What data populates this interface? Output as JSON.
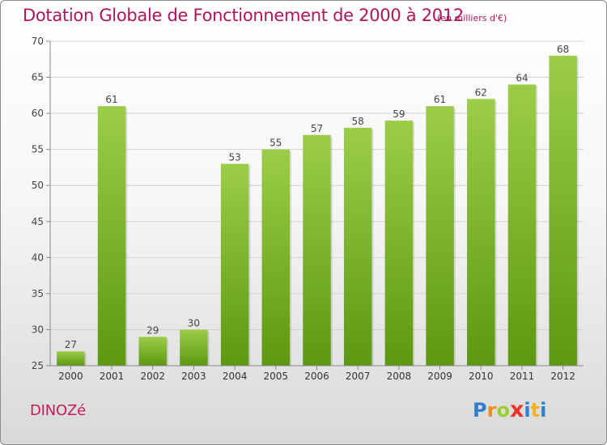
{
  "header": {
    "title": "Dotation Globale de Fonctionnement de 2000 à 2012",
    "subtitle": "(en milliers d'€)"
  },
  "footer": {
    "commune": "DINOZé",
    "logo_letters": [
      "P",
      "r",
      "o",
      "x",
      "i",
      "t",
      "i"
    ]
  },
  "colors": {
    "title": "#b0145a",
    "bar_top": "#9ccd48",
    "bar_bottom": "#5c9811",
    "logo": [
      "#2e7fd0",
      "#f28c1e",
      "#9acd32",
      "#e8352a",
      "#2e7fd0",
      "#f2b21e",
      "#2e7fd0"
    ]
  },
  "chart_data": {
    "type": "bar",
    "title": "Dotation Globale de Fonctionnement de 2000 à 2012",
    "subtitle": "(en milliers d'€)",
    "xlabel": "",
    "ylabel": "",
    "categories": [
      "2000",
      "2001",
      "2002",
      "2003",
      "2004",
      "2005",
      "2006",
      "2007",
      "2008",
      "2009",
      "2010",
      "2011",
      "2012"
    ],
    "values": [
      27,
      61,
      29,
      30,
      53,
      55,
      57,
      58,
      59,
      61,
      62,
      64,
      68
    ],
    "ylim": [
      25,
      70
    ],
    "yticks": [
      25,
      30,
      35,
      40,
      45,
      50,
      55,
      60,
      65,
      70
    ],
    "grid": true,
    "legend": "none"
  }
}
